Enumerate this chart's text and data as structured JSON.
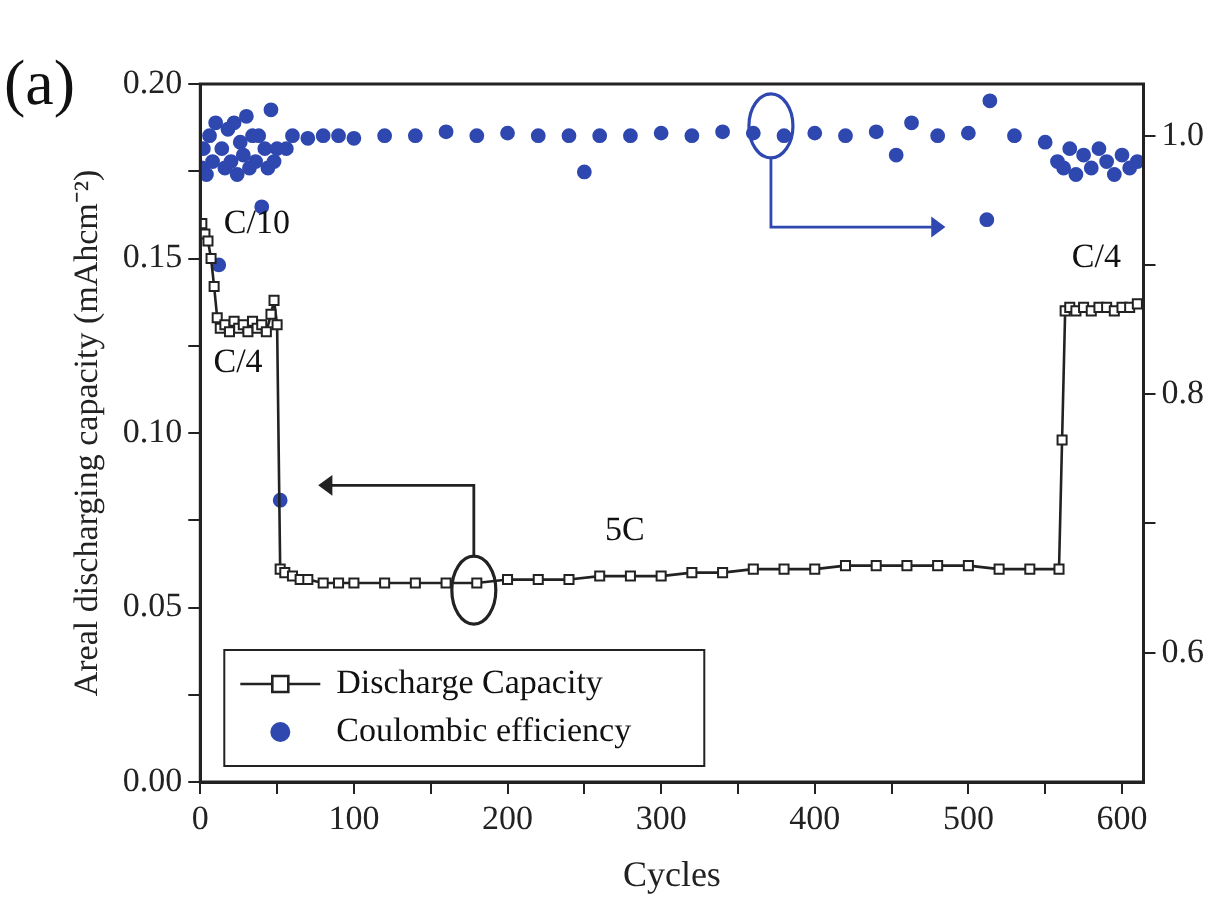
{
  "chart_data": {
    "type": "line",
    "title": "(a)",
    "xlabel": "Cycles",
    "ylabel": "Areal discharging capacity (mAhcm⁻²)",
    "xlim": [
      0,
      614
    ],
    "xticks": [
      0,
      {
        "value": 50,
        "label": null
      },
      100,
      {
        "value": 150,
        "label": null
      },
      200,
      {
        "value": 250,
        "label": null
      },
      300,
      {
        "value": 350,
        "label": null
      },
      400,
      {
        "value": 450,
        "label": null
      },
      500,
      {
        "value": 550,
        "label": null
      },
      600
    ],
    "ylim": [
      0,
      0.2
    ],
    "yticks": [
      {
        "value": 0,
        "label": "0.00"
      },
      {
        "value": 0.025,
        "label": null
      },
      {
        "value": 0.05,
        "label": "0.05"
      },
      {
        "value": 0.075,
        "label": null
      },
      {
        "value": 0.1,
        "label": "0.10"
      },
      {
        "value": 0.125,
        "label": null
      },
      {
        "value": 0.15,
        "label": "0.15"
      },
      {
        "value": 0.175,
        "label": null
      },
      {
        "value": 0.2,
        "label": "0.20"
      }
    ],
    "y2lim": [
      0.5,
      1.04
    ],
    "y2ticks": [
      {
        "value": 0.6,
        "label": "0.6"
      },
      {
        "value": 0.7,
        "label": null
      },
      {
        "value": 0.8,
        "label": "0.8"
      },
      {
        "value": 0.9,
        "label": null
      },
      {
        "value": 1.0,
        "label": "1.0"
      }
    ],
    "grid": false,
    "legend": "bottom left",
    "annotations": [
      "C/10",
      "C/4",
      "5C",
      "C/4"
    ],
    "series": [
      {
        "name": "Discharge Capacity",
        "color": "#222222",
        "marker": "square",
        "line_style": "solid",
        "x": [
          1,
          3,
          5,
          7,
          9,
          11,
          13,
          16,
          19,
          22,
          25,
          28,
          31,
          34,
          37,
          40,
          43,
          46,
          48,
          50,
          52,
          55,
          60,
          65,
          70,
          80,
          90,
          100,
          120,
          140,
          160,
          180,
          200,
          220,
          240,
          260,
          280,
          300,
          320,
          340,
          360,
          380,
          400,
          420,
          440,
          460,
          480,
          500,
          520,
          540,
          559,
          561,
          563,
          566,
          570,
          575,
          580,
          585,
          590,
          595,
          600,
          605,
          610
        ],
        "values": [
          0.16,
          0.157,
          0.155,
          0.15,
          0.142,
          0.133,
          0.13,
          0.131,
          0.129,
          0.132,
          0.13,
          0.131,
          0.129,
          0.132,
          0.13,
          0.131,
          0.129,
          0.134,
          0.138,
          0.131,
          0.061,
          0.06,
          0.059,
          0.058,
          0.058,
          0.057,
          0.057,
          0.057,
          0.057,
          0.057,
          0.057,
          0.057,
          0.058,
          0.058,
          0.058,
          0.059,
          0.059,
          0.059,
          0.06,
          0.06,
          0.061,
          0.061,
          0.061,
          0.062,
          0.062,
          0.062,
          0.062,
          0.062,
          0.061,
          0.061,
          0.061,
          0.098,
          0.135,
          0.136,
          0.135,
          0.136,
          0.135,
          0.136,
          0.136,
          0.135,
          0.136,
          0.136,
          0.137
        ]
      },
      {
        "name": "Coulombic efficiency",
        "type": "scatter",
        "axis": "y2",
        "color": "#2f48b0",
        "marker": "circle",
        "x": [
          1,
          2,
          4,
          6,
          8,
          10,
          12,
          14,
          16,
          18,
          20,
          22,
          24,
          26,
          28,
          30,
          32,
          34,
          36,
          38,
          40,
          42,
          44,
          46,
          48,
          50,
          52,
          56,
          60,
          70,
          80,
          90,
          100,
          120,
          140,
          160,
          180,
          200,
          220,
          240,
          250,
          260,
          280,
          300,
          320,
          340,
          360,
          380,
          400,
          420,
          440,
          453,
          463,
          480,
          500,
          512,
          514,
          530,
          550,
          558,
          562,
          566,
          570,
          575,
          580,
          585,
          590,
          595,
          600,
          605,
          610
        ],
        "values": [
          0.975,
          0.99,
          0.97,
          1.0,
          0.98,
          1.01,
          0.9,
          0.99,
          0.975,
          1.005,
          0.98,
          1.01,
          0.97,
          0.995,
          0.985,
          1.015,
          0.975,
          1.0,
          0.98,
          1.0,
          0.945,
          0.99,
          0.975,
          1.02,
          0.98,
          0.99,
          0.718,
          0.99,
          1.0,
          0.998,
          1.0,
          1.0,
          0.998,
          1.0,
          1.0,
          1.003,
          1.0,
          1.002,
          1.0,
          1.0,
          0.972,
          1.0,
          1.0,
          1.002,
          1.0,
          1.003,
          1.002,
          1.0,
          1.002,
          1.0,
          1.003,
          0.985,
          1.01,
          1.0,
          1.002,
          0.935,
          1.027,
          1.0,
          0.995,
          0.98,
          0.975,
          0.99,
          0.97,
          0.985,
          0.975,
          0.99,
          0.98,
          0.97,
          0.985,
          0.975,
          0.98
        ]
      }
    ]
  }
}
